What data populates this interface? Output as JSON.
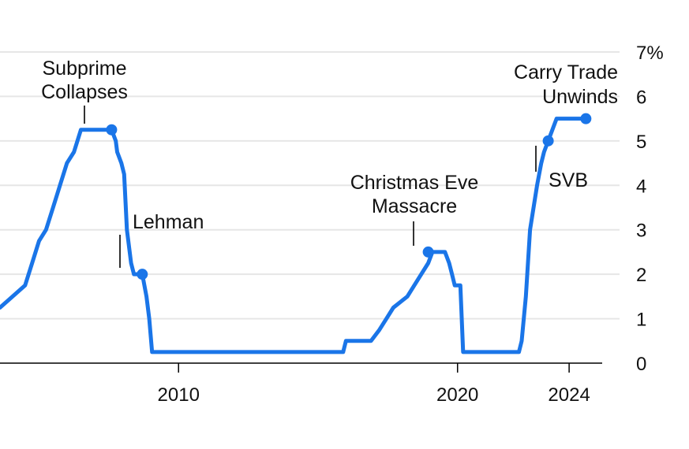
{
  "colors": {
    "series": "#1a75e8",
    "grid": "#e6e6e6",
    "text": "#111111"
  },
  "chart_data": {
    "type": "line",
    "title": "",
    "xlabel": "",
    "ylabel": "",
    "xlim": [
      2003.6,
      2025.1
    ],
    "ylim": [
      0,
      7
    ],
    "y_unit": "%",
    "x_ticks": [
      2010,
      2020,
      2024
    ],
    "y_ticks": [
      0,
      1,
      2,
      3,
      4,
      5,
      6,
      7
    ],
    "y_tick_labels": [
      "0",
      "1",
      "2",
      "3",
      "4",
      "5",
      "6",
      "7%"
    ],
    "grid": "horizontal",
    "series": [
      {
        "points": [
          [
            2003.6,
            1.25
          ],
          [
            2004.5,
            1.75
          ],
          [
            2004.75,
            2.25
          ],
          [
            2005.0,
            2.75
          ],
          [
            2005.25,
            3.0
          ],
          [
            2005.5,
            3.5
          ],
          [
            2005.75,
            4.0
          ],
          [
            2006.0,
            4.5
          ],
          [
            2006.25,
            4.75
          ],
          [
            2006.5,
            5.25
          ],
          [
            2007.2,
            5.25
          ],
          [
            2007.6,
            5.25
          ],
          [
            2007.75,
            5.0
          ],
          [
            2007.8,
            4.75
          ],
          [
            2007.95,
            4.5
          ],
          [
            2008.05,
            4.25
          ],
          [
            2008.15,
            3.0
          ],
          [
            2008.3,
            2.25
          ],
          [
            2008.4,
            2.0
          ],
          [
            2008.7,
            2.0
          ],
          [
            2008.85,
            1.5
          ],
          [
            2008.95,
            1.0
          ],
          [
            2009.05,
            0.25
          ],
          [
            2015.9,
            0.25
          ],
          [
            2016.0,
            0.5
          ],
          [
            2016.9,
            0.5
          ],
          [
            2017.2,
            0.75
          ],
          [
            2017.45,
            1.0
          ],
          [
            2017.7,
            1.25
          ],
          [
            2018.2,
            1.5
          ],
          [
            2018.45,
            1.75
          ],
          [
            2018.7,
            2.0
          ],
          [
            2018.95,
            2.25
          ],
          [
            2019.1,
            2.5
          ],
          [
            2019.55,
            2.5
          ],
          [
            2019.7,
            2.25
          ],
          [
            2019.8,
            2.0
          ],
          [
            2019.9,
            1.75
          ],
          [
            2020.1,
            1.75
          ],
          [
            2020.2,
            0.25
          ],
          [
            2022.2,
            0.25
          ],
          [
            2022.3,
            0.5
          ],
          [
            2022.45,
            1.5
          ],
          [
            2022.6,
            3.0
          ],
          [
            2022.85,
            4.0
          ],
          [
            2023.0,
            4.5
          ],
          [
            2023.1,
            4.75
          ],
          [
            2023.25,
            5.0
          ],
          [
            2023.4,
            5.25
          ],
          [
            2023.55,
            5.5
          ],
          [
            2024.6,
            5.5
          ]
        ]
      }
    ],
    "annotations": [
      {
        "id": "subprime",
        "lines": [
          "Subprime",
          "Collapses"
        ],
        "x": 2007.6,
        "y": 5.25
      },
      {
        "id": "lehman",
        "lines": [
          "Lehman"
        ],
        "x": 2008.7,
        "y": 2.0
      },
      {
        "id": "christmas",
        "lines": [
          "Christmas Eve",
          "Massacre"
        ],
        "x": 2018.95,
        "y": 2.5
      },
      {
        "id": "svb",
        "lines": [
          "SVB"
        ],
        "x": 2023.25,
        "y": 5.0
      },
      {
        "id": "carry",
        "lines": [
          "Carry Trade",
          "Unwinds"
        ],
        "x": 2024.6,
        "y": 5.5
      }
    ]
  }
}
